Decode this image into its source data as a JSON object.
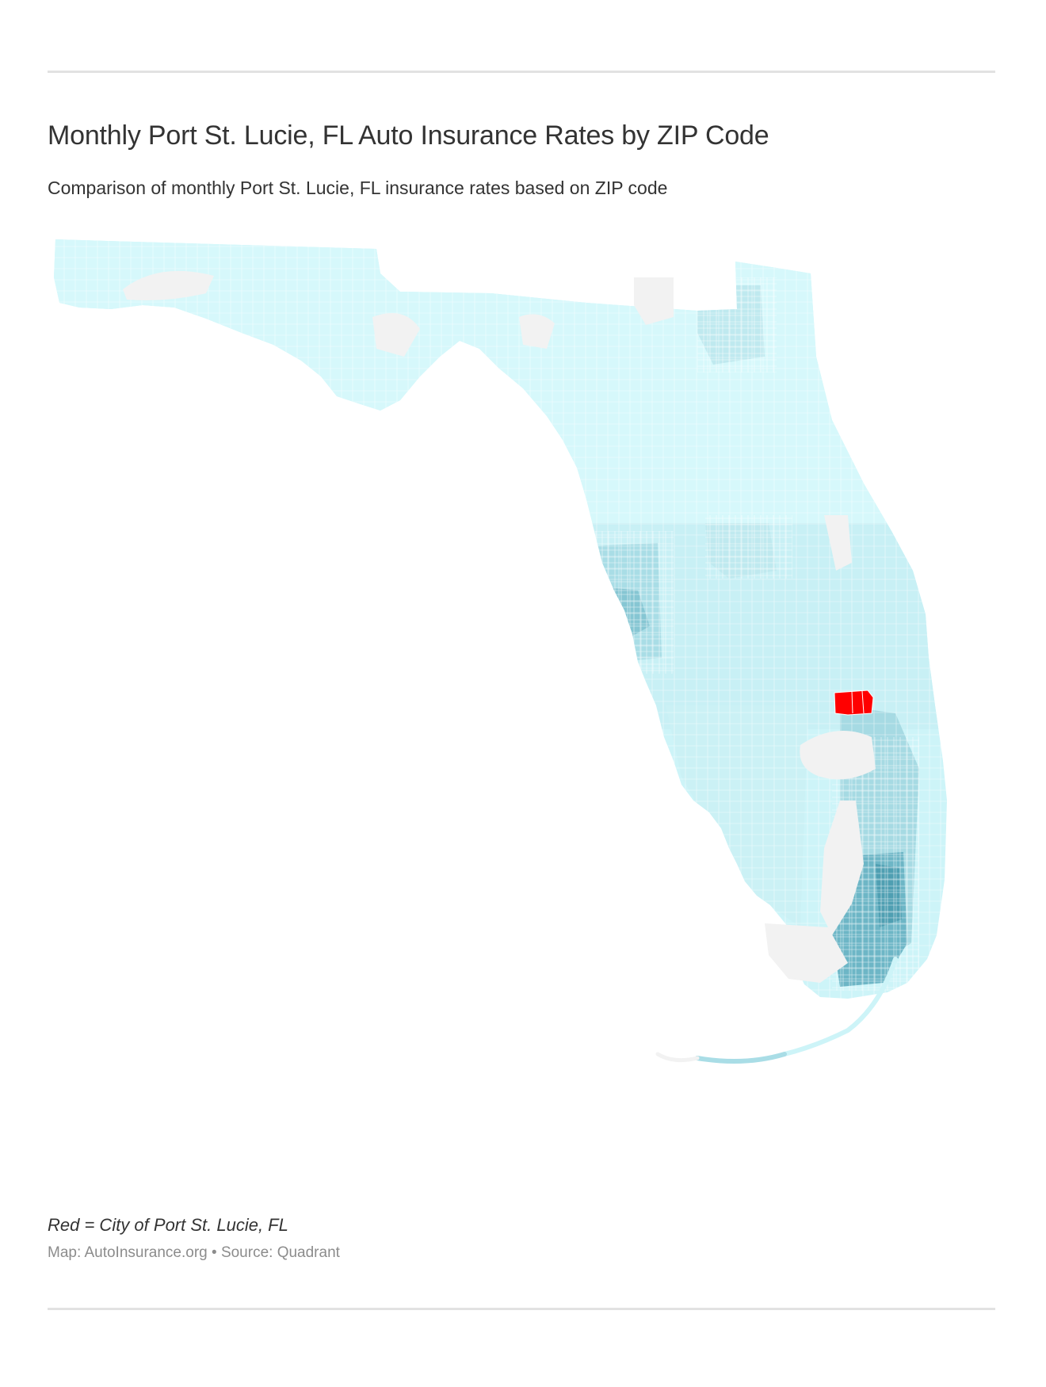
{
  "header": {
    "title": "Monthly Port St. Lucie, FL Auto Insurance Rates by ZIP Code",
    "subtitle": "Comparison of monthly Port St. Lucie, FL insurance rates based on ZIP code"
  },
  "map": {
    "region": "Florida",
    "unit": "ZIP code",
    "highlight_city": "Port St. Lucie, FL",
    "colors": {
      "no_data": "#f2f2f2",
      "low": "#d4f7fb",
      "mid_low": "#c3eef3",
      "mid": "#a9dde6",
      "high": "#7fc2cf",
      "highest": "#5aa9bb",
      "highlight": "#ff0000",
      "zip_border": "#ffffff"
    }
  },
  "footer": {
    "note": "Red = City of Port St. Lucie, FL",
    "credit": "Map: AutoInsurance.org • Source: Quadrant"
  }
}
